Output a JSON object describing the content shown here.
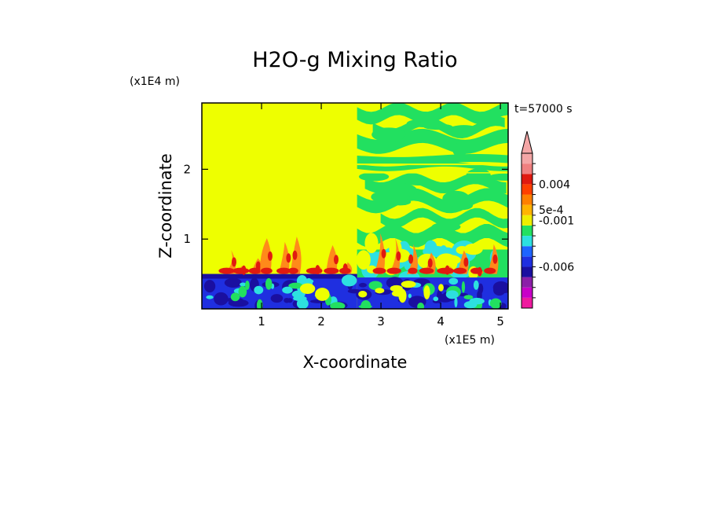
{
  "chart_data": {
    "type": "heatmap",
    "title": "H2O-g Mixing Ratio",
    "xlabel": "X-coordinate",
    "ylabel": "Z-coordinate",
    "x_scale_label": "(x1E5 m)",
    "y_scale_label": "(x1E4 m)",
    "time_label": "t=57000 s",
    "xlim": [
      0,
      5.13
    ],
    "ylim": [
      0,
      2.95
    ],
    "x_ticks": [
      {
        "value": 1,
        "label": "1"
      },
      {
        "value": 2,
        "label": "2"
      },
      {
        "value": 3,
        "label": "3"
      },
      {
        "value": 4,
        "label": "4"
      },
      {
        "value": 5,
        "label": "5"
      }
    ],
    "y_ticks": [
      {
        "value": 1,
        "label": "1"
      },
      {
        "value": 2,
        "label": "2"
      }
    ],
    "colorbar": {
      "colors": [
        "#ee1a9f",
        "#c800c8",
        "#8b1fa8",
        "#1a0fa0",
        "#1f2fe0",
        "#1e64ff",
        "#2de0e0",
        "#22e060",
        "#eeee00",
        "#ffb400",
        "#ff8000",
        "#ff4000",
        "#e01a10",
        "#f08080",
        "#f4a6a6"
      ],
      "labels": [
        {
          "text": "0.004",
          "level": 12
        },
        {
          "text": "5e-4",
          "level": 9.5
        },
        {
          "text": "-0.001",
          "level": 8.5
        },
        {
          "text": "-0.006",
          "level": 4
        }
      ],
      "extend": "max"
    },
    "field_colors": {
      "background": "#eeff00",
      "green": "#22e060",
      "cyan": "#2de0e0",
      "blue": "#1f2fe0",
      "navy": "#1a0fa0",
      "orange": "#ff8a1a",
      "red": "#e01a10"
    }
  }
}
